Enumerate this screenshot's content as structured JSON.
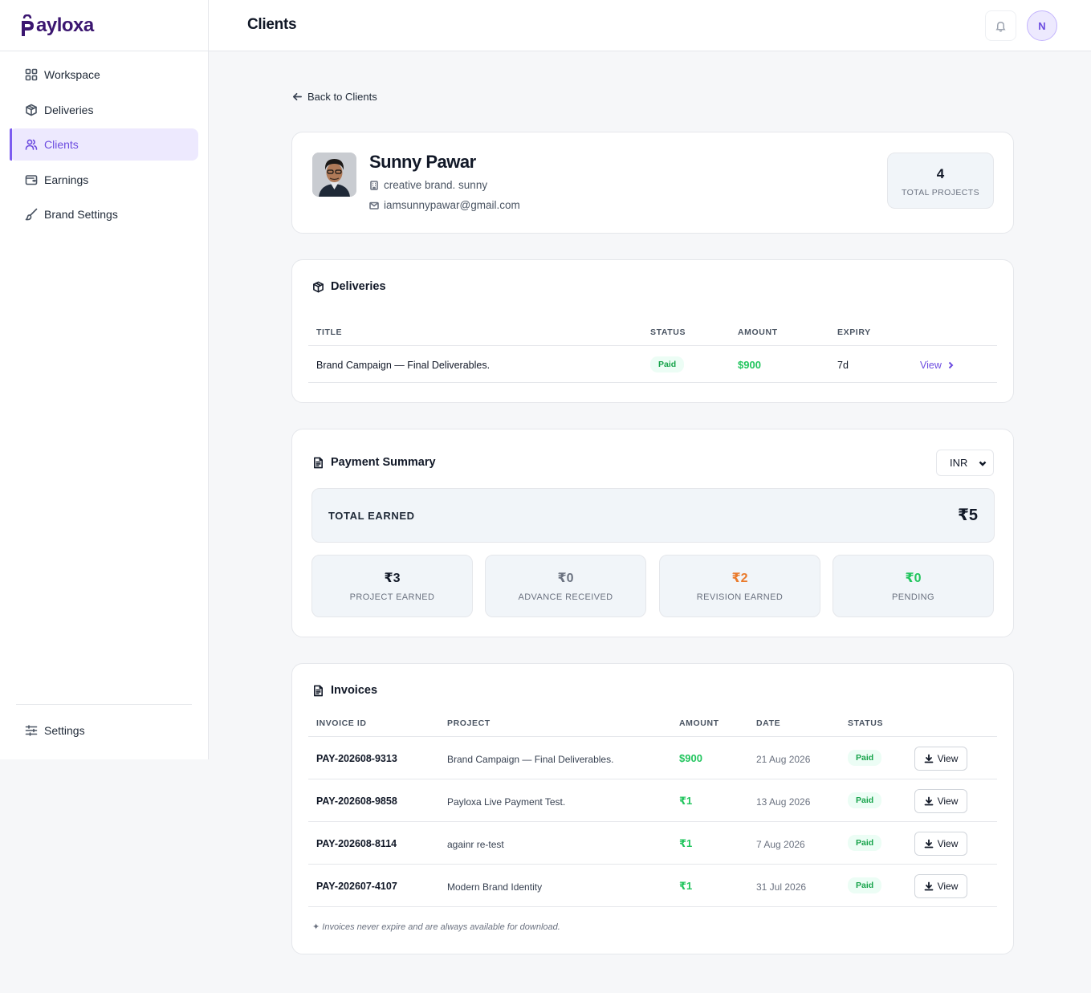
{
  "brand": {
    "logo_text": "ayloxa",
    "logo_initial": "P"
  },
  "sidebar": {
    "items": [
      {
        "label": "Workspace"
      },
      {
        "label": "Deliveries"
      },
      {
        "label": "Clients"
      },
      {
        "label": "Earnings"
      },
      {
        "label": "Brand Settings"
      }
    ],
    "settings_label": "Settings"
  },
  "header": {
    "title": "Clients",
    "avatar_initial": "N"
  },
  "back_link": "Back to Clients",
  "client": {
    "name": "Sunny Pawar",
    "brand": "creative brand. sunny",
    "email": "iamsunnypawar@gmail.com",
    "total_projects_value": "4",
    "total_projects_label": "TOTAL PROJECTS"
  },
  "deliveries": {
    "heading": "Deliveries",
    "columns": {
      "title": "TITLE",
      "status": "STATUS",
      "amount": "AMOUNT",
      "expiry": "EXPIRY"
    },
    "rows": [
      {
        "title": "Brand Campaign — Final Deliverables.",
        "status": "Paid",
        "amount": "$900",
        "expiry": "7d",
        "action": "View"
      }
    ]
  },
  "payment_summary": {
    "heading": "Payment Summary",
    "currency": "INR",
    "total_label": "TOTAL EARNED",
    "total_value": "₹5",
    "stats": [
      {
        "value": "₹3",
        "label": "PROJECT EARNED",
        "color": "#111827"
      },
      {
        "value": "₹0",
        "label": "ADVANCE RECEIVED",
        "color": "#6b7280"
      },
      {
        "value": "₹2",
        "label": "REVISION EARNED",
        "color": "#ea7a2b"
      },
      {
        "value": "₹0",
        "label": "PENDING",
        "color": "#22c55e"
      }
    ]
  },
  "invoices": {
    "heading": "Invoices",
    "columns": {
      "id": "INVOICE ID",
      "project": "PROJECT",
      "amount": "AMOUNT",
      "date": "DATE",
      "status": "STATUS"
    },
    "rows": [
      {
        "id": "PAY-202608-9313",
        "project": "Brand Campaign — Final Deliverables.",
        "amount": "$900",
        "date": "21 Aug 2026",
        "status": "Paid",
        "action": "View"
      },
      {
        "id": "PAY-202608-9858",
        "project": "Payloxa Live Payment Test.",
        "amount": "₹1",
        "date": "13 Aug 2026",
        "status": "Paid",
        "action": "View"
      },
      {
        "id": "PAY-202608-8114",
        "project": "againr re-test",
        "amount": "₹1",
        "date": "7 Aug 2026",
        "status": "Paid",
        "action": "View"
      },
      {
        "id": "PAY-202607-4107",
        "project": "Modern Brand Identity",
        "amount": "₹1",
        "date": "31 Jul 2026",
        "status": "Paid",
        "action": "View"
      }
    ],
    "footnote": "✦ Invoices never expire and are always available for download."
  },
  "colors": {
    "accent": "#6d4de0",
    "paid_green": "#16a34a",
    "amount_green": "#22c55e",
    "revision_orange": "#ea7a2b"
  }
}
